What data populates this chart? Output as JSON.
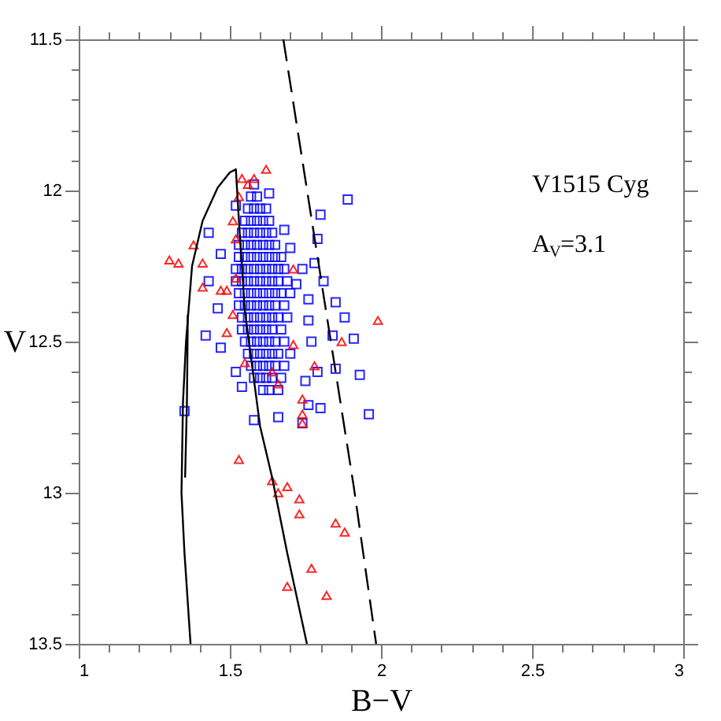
{
  "chart_data": {
    "type": "scatter",
    "xlabel": "B−V",
    "ylabel": "V",
    "annotations": [
      "V1515 Cyg",
      "A$_{V}$=3.1"
    ],
    "xlim": [
      1,
      3
    ],
    "ylim": [
      13.5,
      11.5
    ],
    "grid": false,
    "xticks": [
      1,
      {
        "value": 1.1,
        "label": null
      },
      {
        "value": 1.2,
        "label": null
      },
      {
        "value": 1.3,
        "label": null
      },
      {
        "value": 1.4,
        "label": null
      },
      1.5,
      {
        "value": 1.6,
        "label": null
      },
      {
        "value": 1.7,
        "label": null
      },
      {
        "value": 1.8,
        "label": null
      },
      {
        "value": 1.9,
        "label": null
      },
      2,
      {
        "value": 2.1,
        "label": null
      },
      {
        "value": 2.2,
        "label": null
      },
      {
        "value": 2.3,
        "label": null
      },
      {
        "value": 2.4,
        "label": null
      },
      2.5,
      {
        "value": 2.6,
        "label": null
      },
      {
        "value": 2.7,
        "label": null
      },
      {
        "value": 2.8,
        "label": null
      },
      {
        "value": 2.9,
        "label": null
      },
      3
    ],
    "yticks": [
      11.5,
      {
        "value": 11.6,
        "label": null
      },
      {
        "value": 11.7,
        "label": null
      },
      {
        "value": 11.8,
        "label": null
      },
      {
        "value": 11.9,
        "label": null
      },
      12,
      {
        "value": 12.1,
        "label": null
      },
      {
        "value": 12.2,
        "label": null
      },
      {
        "value": 12.3,
        "label": null
      },
      {
        "value": 12.4,
        "label": null
      },
      12.5,
      {
        "value": 12.6,
        "label": null
      },
      {
        "value": 12.7,
        "label": null
      },
      {
        "value": 12.8,
        "label": null
      },
      {
        "value": 12.9,
        "label": null
      },
      13,
      {
        "value": 13.1,
        "label": null
      },
      {
        "value": 13.2,
        "label": null
      },
      {
        "value": 13.3,
        "label": null
      },
      {
        "value": 13.4,
        "label": null
      },
      13.5
    ],
    "series": [
      {
        "marker": "square",
        "color": "#0000ff",
        "x": [
          1.57,
          1.59,
          1.56,
          1.58,
          1.6,
          1.62,
          1.55,
          1.57,
          1.59,
          1.61,
          1.63,
          1.54,
          1.56,
          1.58,
          1.6,
          1.62,
          1.64,
          1.53,
          1.55,
          1.57,
          1.59,
          1.61,
          1.63,
          1.65,
          1.53,
          1.55,
          1.57,
          1.59,
          1.61,
          1.63,
          1.65,
          1.67,
          1.52,
          1.54,
          1.56,
          1.58,
          1.6,
          1.62,
          1.64,
          1.66,
          1.68,
          1.52,
          1.54,
          1.56,
          1.58,
          1.6,
          1.62,
          1.64,
          1.66,
          1.69,
          1.53,
          1.55,
          1.57,
          1.59,
          1.61,
          1.63,
          1.65,
          1.67,
          1.7,
          1.53,
          1.55,
          1.57,
          1.59,
          1.61,
          1.63,
          1.65,
          1.68,
          1.54,
          1.56,
          1.58,
          1.6,
          1.62,
          1.64,
          1.66,
          1.69,
          1.54,
          1.56,
          1.58,
          1.6,
          1.62,
          1.64,
          1.67,
          1.55,
          1.57,
          1.59,
          1.61,
          1.63,
          1.65,
          1.68,
          1.56,
          1.58,
          1.6,
          1.62,
          1.64,
          1.66,
          1.7,
          1.57,
          1.59,
          1.61,
          1.63,
          1.65,
          1.68,
          1.58,
          1.6,
          1.62,
          1.64,
          1.67,
          1.61,
          1.63,
          1.66,
          1.89,
          1.8,
          1.79,
          1.68,
          1.7,
          1.78,
          1.81,
          1.85,
          1.88,
          1.84,
          1.91,
          1.93,
          1.96,
          1.8,
          1.76,
          1.74,
          1.66,
          1.58,
          1.54,
          1.52,
          1.35,
          1.42,
          1.47,
          1.43,
          1.46,
          1.47,
          1.43,
          1.52,
          1.58,
          1.63,
          1.85,
          1.79,
          1.75,
          1.77,
          1.76,
          1.76,
          1.74,
          1.72
        ],
        "values": [
          12.02,
          12.02,
          12.06,
          12.06,
          12.06,
          12.06,
          12.1,
          12.1,
          12.1,
          12.1,
          12.1,
          12.14,
          12.14,
          12.14,
          12.14,
          12.14,
          12.14,
          12.18,
          12.18,
          12.18,
          12.18,
          12.18,
          12.18,
          12.18,
          12.22,
          12.22,
          12.22,
          12.22,
          12.22,
          12.22,
          12.22,
          12.22,
          12.26,
          12.26,
          12.26,
          12.26,
          12.26,
          12.26,
          12.26,
          12.26,
          12.26,
          12.3,
          12.3,
          12.3,
          12.3,
          12.3,
          12.3,
          12.3,
          12.3,
          12.3,
          12.34,
          12.34,
          12.34,
          12.34,
          12.34,
          12.34,
          12.34,
          12.34,
          12.34,
          12.38,
          12.38,
          12.38,
          12.38,
          12.38,
          12.38,
          12.38,
          12.38,
          12.42,
          12.42,
          12.42,
          12.42,
          12.42,
          12.42,
          12.42,
          12.42,
          12.46,
          12.46,
          12.46,
          12.46,
          12.46,
          12.46,
          12.46,
          12.5,
          12.5,
          12.5,
          12.5,
          12.5,
          12.5,
          12.5,
          12.54,
          12.54,
          12.54,
          12.54,
          12.54,
          12.54,
          12.54,
          12.58,
          12.58,
          12.58,
          12.58,
          12.58,
          12.58,
          12.62,
          12.62,
          12.62,
          12.62,
          12.62,
          12.66,
          12.66,
          12.66,
          12.03,
          12.08,
          12.16,
          12.13,
          12.19,
          12.24,
          12.3,
          12.37,
          12.42,
          12.48,
          12.49,
          12.61,
          12.74,
          12.72,
          12.71,
          12.77,
          12.75,
          12.76,
          12.65,
          12.6,
          12.73,
          12.48,
          12.52,
          12.3,
          12.39,
          12.21,
          12.14,
          12.05,
          11.98,
          12.01,
          12.59,
          12.6,
          12.63,
          12.5,
          12.43,
          12.36,
          12.26,
          12.31
        ]
      },
      {
        "marker": "triangle",
        "color": "#ff0000",
        "x": [
          1.62,
          1.54,
          1.58,
          1.56,
          1.38,
          1.3,
          1.33,
          1.41,
          1.41,
          1.51,
          1.99,
          1.87,
          1.53,
          1.64,
          1.69,
          1.74,
          1.74,
          1.74,
          1.78,
          1.71,
          1.49,
          1.47,
          1.49,
          1.52,
          1.51,
          1.55,
          1.66,
          1.64,
          1.71,
          1.53,
          1.52,
          1.66,
          1.73,
          1.73,
          1.85,
          1.88,
          1.77,
          1.69,
          1.82
        ],
        "values": [
          11.93,
          11.96,
          11.96,
          11.98,
          12.18,
          12.23,
          12.24,
          12.24,
          12.32,
          12.1,
          12.43,
          12.5,
          12.89,
          12.96,
          12.98,
          12.69,
          12.74,
          12.77,
          12.58,
          12.51,
          12.47,
          12.33,
          12.33,
          12.29,
          12.41,
          12.57,
          12.64,
          12.6,
          12.26,
          12.02,
          12.16,
          13.0,
          13.02,
          13.07,
          13.1,
          13.13,
          13.25,
          13.31,
          13.34
        ]
      },
      {
        "type": "line",
        "line_style": "solid",
        "color": "#000000",
        "x": [
          1.37,
          1.35,
          1.34,
          1.345,
          1.355,
          1.375,
          1.41,
          1.46,
          1.5,
          1.52,
          1.53,
          1.55,
          1.6,
          1.64,
          1.69,
          1.755
        ],
        "values": [
          13.5,
          13.2,
          13.0,
          12.7,
          12.5,
          12.25,
          12.1,
          11.99,
          11.94,
          11.93,
          12.1,
          12.4,
          12.78,
          12.95,
          13.2,
          13.5
        ]
      },
      {
        "type": "line",
        "line_style": "solid",
        "color": "#000000",
        "x": [
          1.361,
          1.358,
          1.352
        ],
        "values": [
          12.41,
          12.7,
          12.95
        ]
      },
      {
        "type": "line",
        "line_style": "dashed",
        "color": "#000000",
        "x": [
          1.677,
          1.82,
          1.91,
          1.984
        ],
        "values": [
          11.5,
          12.41,
          12.98,
          13.5
        ]
      }
    ]
  }
}
